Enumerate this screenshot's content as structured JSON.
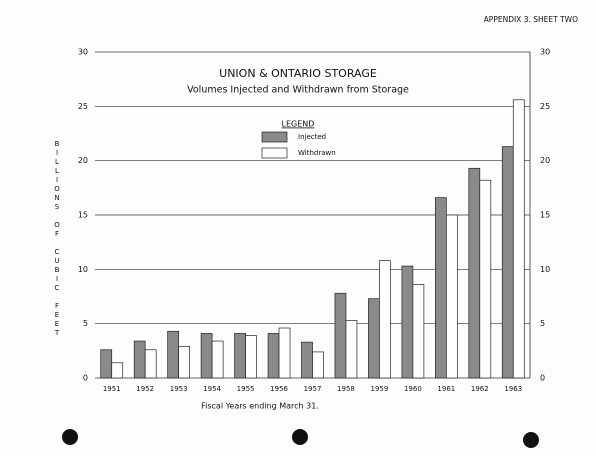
{
  "chart_data": {
    "type": "bar",
    "sheet_label": "APPENDIX 3.  SHEET TWO",
    "title": "UNION & ONTARIO STORAGE",
    "subtitle": "Volumes Injected and Withdrawn from Storage",
    "legend_title": "LEGEND",
    "y_label": "BILLIONS OF CUBIC FEET",
    "x_label": "Fiscal Years ending March 31.",
    "categories": [
      "1951",
      "1952",
      "1953",
      "1954",
      "1955",
      "1956",
      "1957",
      "1958",
      "1959",
      "1960",
      "1961",
      "1962",
      "1963"
    ],
    "series": [
      {
        "name": "Injected",
        "color": "#8a8a8a",
        "values": [
          2.6,
          3.4,
          4.3,
          4.1,
          4.1,
          4.1,
          3.3,
          7.8,
          7.3,
          10.3,
          16.6,
          19.3,
          21.3
        ]
      },
      {
        "name": "Withdrawn",
        "color": "#ffffff",
        "values": [
          1.4,
          2.6,
          2.9,
          3.4,
          3.9,
          4.6,
          2.4,
          5.3,
          10.8,
          8.6,
          15.0,
          18.2,
          25.6
        ]
      }
    ],
    "ylim": [
      0,
      30
    ],
    "yticks": [
      0,
      5,
      10,
      15,
      20,
      25,
      30
    ],
    "grid": true
  }
}
